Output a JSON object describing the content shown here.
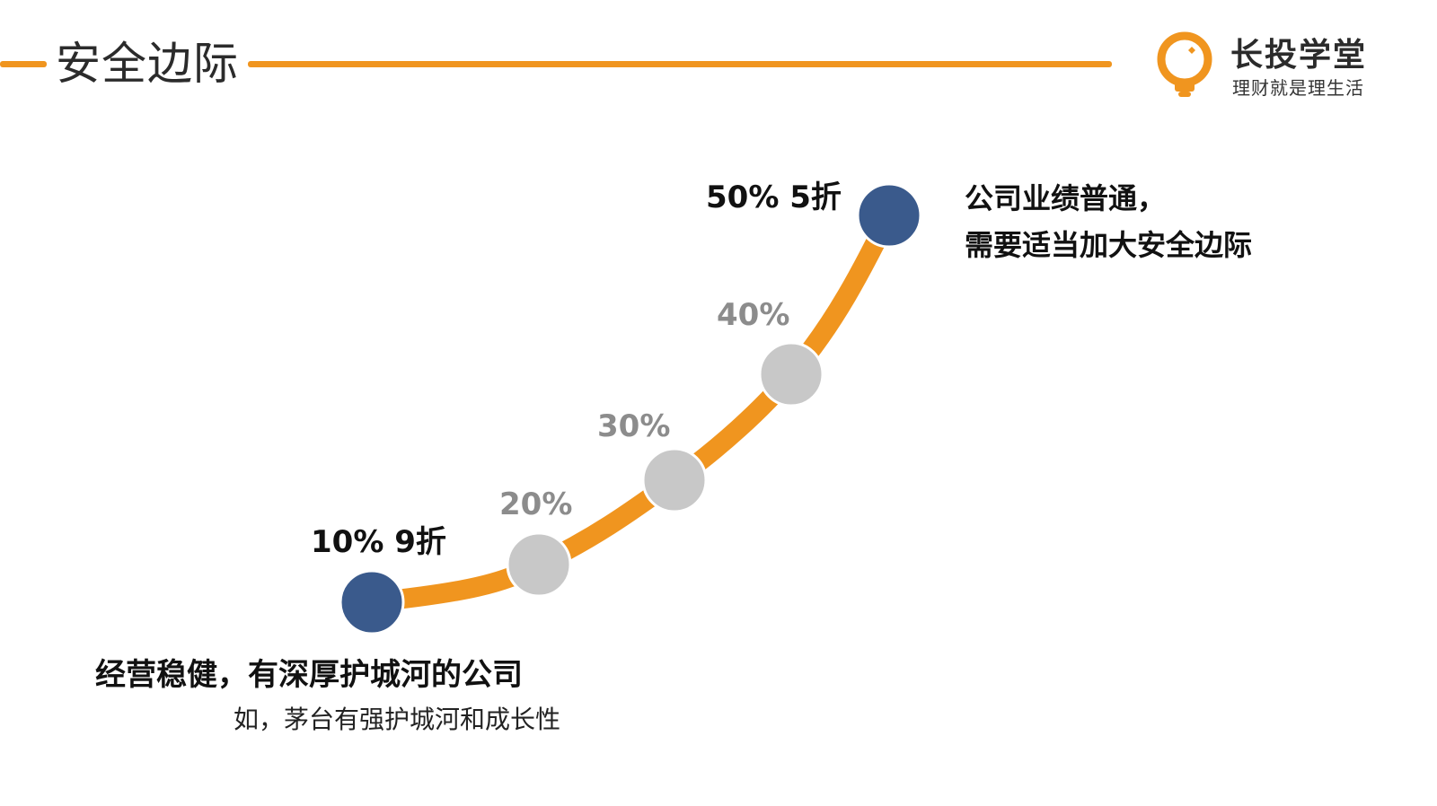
{
  "header": {
    "title": "安全边际"
  },
  "logo": {
    "name": "长投学堂",
    "slogan": "理财就是理生活",
    "icon": "lightbulb-icon",
    "accent_color": "#f0951f"
  },
  "diagram": {
    "curve_color": "#f0951f",
    "end_node_color": "#3a5a8c",
    "mid_node_color": "#c8c8c8",
    "nodes": [
      {
        "label": "10% 9折",
        "kind": "end"
      },
      {
        "label": "20%",
        "kind": "mid"
      },
      {
        "label": "30%",
        "kind": "mid"
      },
      {
        "label": "40%",
        "kind": "mid"
      },
      {
        "label": "50% 5折",
        "kind": "end"
      }
    ]
  },
  "notes": {
    "top_line1": "公司业绩普通，",
    "top_line2": "需要适当加大安全边际",
    "bottom_main": "经营稳健，有深厚护城河的公司",
    "bottom_sub": "如，茅台有强护城河和成长性"
  }
}
